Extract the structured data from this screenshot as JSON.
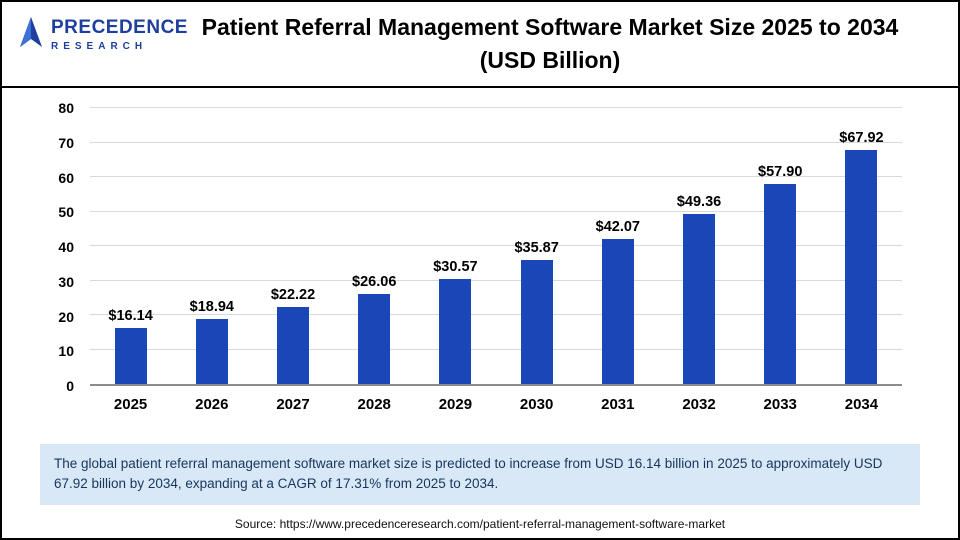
{
  "header": {
    "logo_line1": "PRECEDENCE",
    "logo_line2": "RESEARCH",
    "title_line1": "Patient Referral Management Software Market Size 2025 to 2034",
    "title_line2": "(USD Billion)"
  },
  "chart_data": {
    "type": "bar",
    "title": "Patient Referral Management Software Market Size 2025 to 2034 (USD Billion)",
    "categories": [
      "2025",
      "2026",
      "2027",
      "2028",
      "2029",
      "2030",
      "2031",
      "2032",
      "2033",
      "2034"
    ],
    "values": [
      16.14,
      18.94,
      22.22,
      26.06,
      30.57,
      35.87,
      42.07,
      49.36,
      57.9,
      67.92
    ],
    "labels": [
      "$16.14",
      "$18.94",
      "$22.22",
      "$26.06",
      "$30.57",
      "$35.87",
      "$42.07",
      "$49.36",
      "$57.90",
      "$67.92"
    ],
    "ylim": [
      0,
      80
    ],
    "yticks": [
      0,
      10,
      20,
      30,
      40,
      50,
      60,
      70,
      80
    ],
    "xlabel": "",
    "ylabel": "",
    "grid": "horizontal",
    "legend": "none",
    "bar_color": "#1a47b8"
  },
  "footer": {
    "summary": "The global patient referral management software market size is predicted to increase from USD 16.14 billion in 2025 to approximately USD 67.92 billion by 2034, expanding at a CAGR of 17.31% from 2025 to 2034.",
    "source": "Source: https://www.precedenceresearch.com/patient-referral-management-software-market"
  },
  "colors": {
    "bar": "#1a47b8",
    "logo_blue": "#1f3f9e",
    "summary_bg": "#d9e8f7",
    "summary_text": "#16365c",
    "gridline": "#d9d9d9"
  }
}
